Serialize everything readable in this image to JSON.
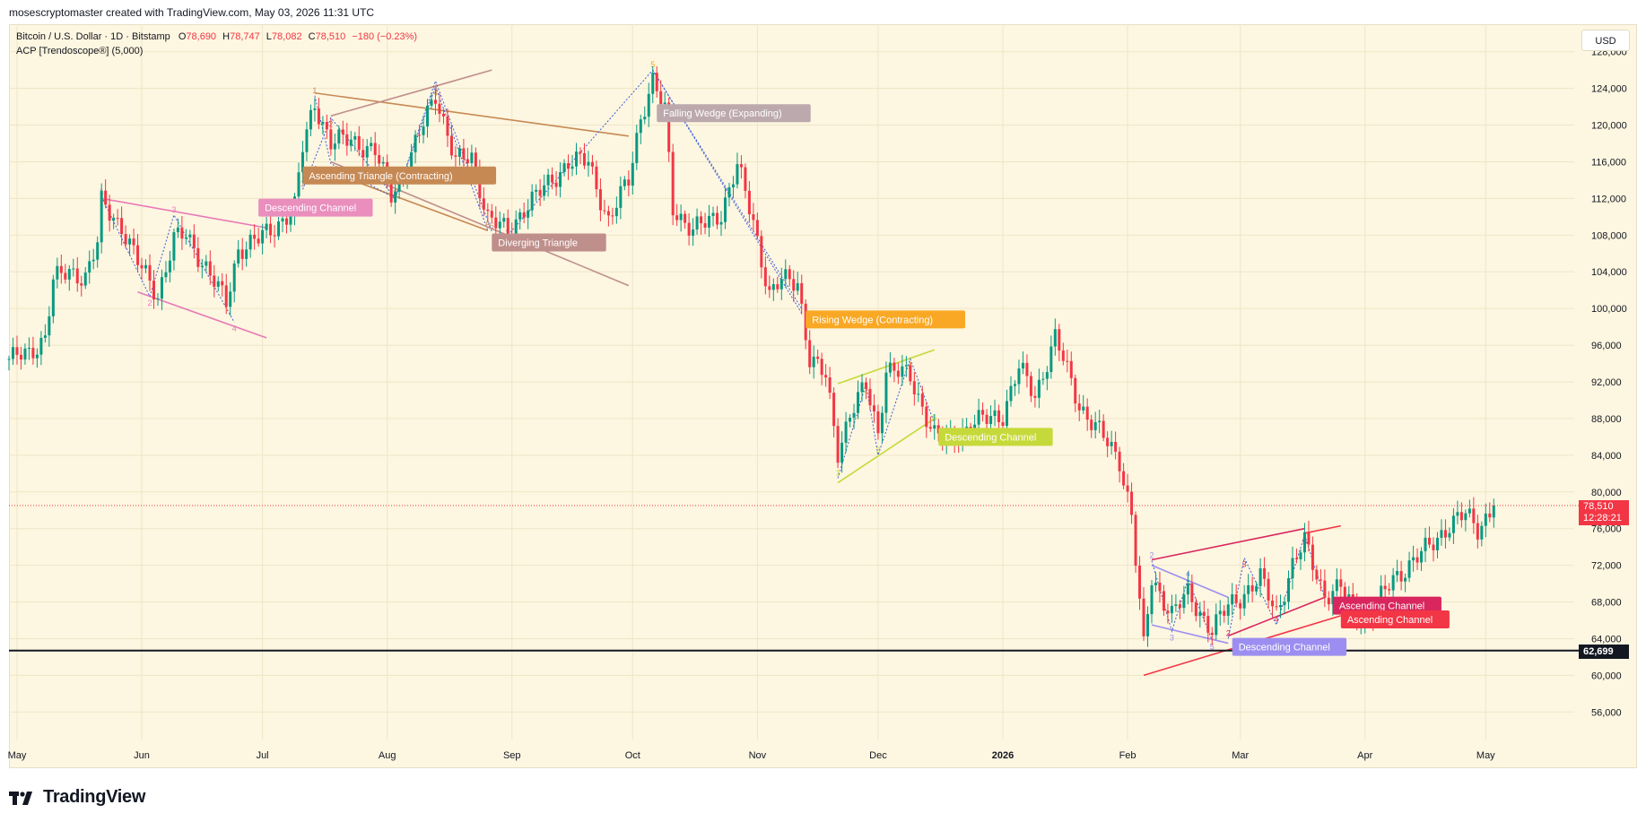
{
  "header": {
    "credit": "mosescryptomaster created with TradingView.com, May 03, 2026 11:31 UTC"
  },
  "legend": {
    "symbol": "Bitcoin / U.S. Dollar · 1D · Bitstamp",
    "o_label": "O",
    "o_value": "78,690",
    "h_label": "H",
    "h_value": "78,747",
    "l_label": "L",
    "l_value": "78,082",
    "c_label": "C",
    "c_value": "78,510",
    "change": "−180 (−0.23%)",
    "indicator": "ACP [Trendoscope®] (5,000)"
  },
  "currency": "USD",
  "brand": "TradingView",
  "current_price": {
    "price": "78,510",
    "countdown": "12:28:21",
    "value": 78510
  },
  "support_line": {
    "label": "62,699",
    "value": 62699
  },
  "colors": {
    "up": "#089981",
    "down": "#f23645",
    "background": "#fdf6e0",
    "support": "#131722"
  },
  "chart_data": {
    "type": "candlestick",
    "symbol": "Bitcoin / U.S. Dollar",
    "timeframe": "1D",
    "exchange": "Bitstamp",
    "ylim": [
      53000,
      131000
    ],
    "y_ticks": [
      "128,000",
      "124,000",
      "120,000",
      "116,000",
      "112,000",
      "108,000",
      "104,000",
      "100,000",
      "96,000",
      "92,000",
      "88,000",
      "84,000",
      "80,000",
      "76,000",
      "72,000",
      "68,000",
      "64,000",
      "60,000",
      "56,000"
    ],
    "y_tick_values": [
      128000,
      124000,
      120000,
      116000,
      112000,
      108000,
      104000,
      100000,
      96000,
      92000,
      88000,
      84000,
      80000,
      76000,
      72000,
      68000,
      64000,
      60000,
      56000
    ],
    "x_ticks": [
      "May",
      "Jun",
      "Jul",
      "Aug",
      "Sep",
      "Oct",
      "Nov",
      "Dec",
      "2026",
      "Feb",
      "Mar",
      "Apr",
      "May"
    ],
    "x_tick_dates": [
      "2025-05-01",
      "2025-06-01",
      "2025-07-01",
      "2025-08-01",
      "2025-09-01",
      "2025-10-01",
      "2025-11-01",
      "2025-12-01",
      "2026-01-01",
      "2026-02-01",
      "2026-03-01",
      "2026-04-01",
      "2026-05-01"
    ],
    "x_range": [
      "2025-04-29",
      "2026-05-23"
    ],
    "close_path": [
      [
        "2025-04-29",
        94500
      ],
      [
        "2025-05-04",
        95000
      ],
      [
        "2025-05-08",
        97000
      ],
      [
        "2025-05-10",
        103000
      ],
      [
        "2025-05-14",
        104000
      ],
      [
        "2025-05-18",
        103500
      ],
      [
        "2025-05-21",
        107000
      ],
      [
        "2025-05-22",
        111500
      ],
      [
        "2025-05-27",
        109000
      ],
      [
        "2025-05-31",
        105000
      ],
      [
        "2025-06-05",
        101500
      ],
      [
        "2025-06-09",
        107500
      ],
      [
        "2025-06-12",
        108000
      ],
      [
        "2025-06-17",
        104500
      ],
      [
        "2025-06-22",
        100500
      ],
      [
        "2025-06-25",
        106500
      ],
      [
        "2025-06-30",
        107500
      ],
      [
        "2025-07-03",
        108500
      ],
      [
        "2025-07-09",
        111000
      ],
      [
        "2025-07-11",
        117500
      ],
      [
        "2025-07-14",
        122500
      ],
      [
        "2025-07-18",
        118000
      ],
      [
        "2025-07-23",
        118500
      ],
      [
        "2025-07-29",
        117000
      ],
      [
        "2025-08-02",
        112500
      ],
      [
        "2025-08-06",
        115500
      ],
      [
        "2025-08-13",
        123500
      ],
      [
        "2025-08-18",
        116000
      ],
      [
        "2025-08-22",
        116500
      ],
      [
        "2025-08-26",
        110000
      ],
      [
        "2025-08-31",
        108200
      ],
      [
        "2025-09-04",
        111000
      ],
      [
        "2025-09-10",
        113500
      ],
      [
        "2025-09-15",
        116000
      ],
      [
        "2025-09-20",
        116000
      ],
      [
        "2025-09-25",
        109500
      ],
      [
        "2025-09-30",
        114000
      ],
      [
        "2025-10-03",
        121000
      ],
      [
        "2025-10-06",
        124700
      ],
      [
        "2025-10-09",
        121500
      ],
      [
        "2025-10-11",
        111000
      ],
      [
        "2025-10-16",
        108500
      ],
      [
        "2025-10-20",
        109500
      ],
      [
        "2025-10-23",
        110500
      ],
      [
        "2025-10-27",
        115500
      ],
      [
        "2025-10-31",
        109500
      ],
      [
        "2025-11-04",
        101500
      ],
      [
        "2025-11-07",
        103000
      ],
      [
        "2025-11-11",
        103000
      ],
      [
        "2025-11-14",
        94500
      ],
      [
        "2025-11-18",
        92500
      ],
      [
        "2025-11-21",
        84500
      ],
      [
        "2025-11-24",
        88500
      ],
      [
        "2025-11-28",
        91500
      ],
      [
        "2025-12-01",
        86500
      ],
      [
        "2025-12-03",
        93500
      ],
      [
        "2025-12-09",
        92500
      ],
      [
        "2025-12-15",
        86200
      ],
      [
        "2025-12-18",
        85500
      ],
      [
        "2025-12-25",
        87500
      ],
      [
        "2026-01-01",
        88500
      ],
      [
        "2026-01-05",
        93500
      ],
      [
        "2026-01-09",
        90500
      ],
      [
        "2026-01-14",
        96800
      ],
      [
        "2026-01-20",
        89500
      ],
      [
        "2026-01-25",
        86500
      ],
      [
        "2026-01-30",
        83500
      ],
      [
        "2026-02-02",
        77500
      ],
      [
        "2026-02-05",
        62900
      ],
      [
        "2026-02-07",
        70500
      ],
      [
        "2026-02-12",
        66800
      ],
      [
        "2026-02-16",
        68800
      ],
      [
        "2026-02-22",
        65000
      ],
      [
        "2026-02-26",
        67500
      ],
      [
        "2026-03-02",
        69000
      ],
      [
        "2026-03-06",
        70500
      ],
      [
        "2026-03-10",
        66800
      ],
      [
        "2026-03-14",
        72000
      ],
      [
        "2026-03-17",
        74500
      ],
      [
        "2026-03-22",
        68800
      ],
      [
        "2026-03-26",
        69500
      ],
      [
        "2026-03-30",
        66500
      ],
      [
        "2026-04-03",
        67000
      ],
      [
        "2026-04-08",
        70500
      ],
      [
        "2026-04-13",
        72500
      ],
      [
        "2026-04-17",
        74000
      ],
      [
        "2026-04-22",
        76500
      ],
      [
        "2026-04-26",
        77500
      ],
      [
        "2026-04-29",
        76000
      ],
      [
        "2026-05-03",
        78510
      ]
    ],
    "patterns": [
      {
        "name": "Descending Channel",
        "color": "#e879b8",
        "lines": [
          [
            [
              "2025-05-22",
              112000
            ],
            [
              "2025-07-02",
              108800
            ]
          ],
          [
            [
              "2025-05-31",
              101800
            ],
            [
              "2025-07-02",
              96800
            ]
          ]
        ],
        "zigzag": [
          [
            "2025-05-22",
            112200
          ],
          [
            "2025-06-03",
            101300
          ],
          [
            "2025-06-09",
            110200
          ],
          [
            "2025-06-24",
            98500
          ]
        ],
        "points": [
          "1",
          "2",
          "3",
          "4"
        ]
      },
      {
        "name": "Ascending Triangle (Contracting)",
        "color": "#c68954",
        "lines": [
          [
            [
              "2025-07-14",
              123500
            ],
            [
              "2025-09-30",
              118800
            ]
          ],
          [
            [
              "2025-07-14",
              115500
            ],
            [
              "2025-08-26",
              108500
            ]
          ]
        ],
        "zigzag": [
          [
            "2025-07-14",
            123200
          ],
          [
            "2025-07-18",
            115800
          ],
          [
            "2025-08-03",
            112000
          ],
          [
            "2025-08-13",
            124200
          ],
          [
            "2025-08-26",
            108500
          ]
        ],
        "points": [
          "1",
          "2",
          "3",
          "4",
          "5"
        ]
      },
      {
        "name": "Diverging Triangle",
        "color": "#bf8f8b",
        "lines": [
          [
            [
              "2025-07-18",
              121000
            ],
            [
              "2025-08-27",
              126000
            ]
          ],
          [
            [
              "2025-07-18",
              116000
            ],
            [
              "2025-09-30",
              102500
            ]
          ]
        ],
        "zigzag": [
          [
            "2025-07-11",
            113000
          ],
          [
            "2025-07-18",
            120800
          ],
          [
            "2025-08-03",
            112000
          ],
          [
            "2025-08-13",
            124800
          ],
          [
            "2025-08-27",
            108400
          ]
        ],
        "points": [
          "1",
          "2",
          "3",
          "4",
          "5"
        ]
      },
      {
        "name": "Falling Wedge (Expanding)",
        "color": "#bca9ad",
        "lines": [],
        "zigzag": [
          [
            "2025-08-31",
            108000
          ],
          [
            "2025-10-06",
            126000
          ],
          [
            "2025-11-12",
            100000
          ]
        ],
        "points": [
          "4"
        ]
      },
      {
        "name": "Rising Wedge (Contracting)",
        "color": "#f9a825",
        "lines": [],
        "zigzag": [
          [
            "2025-10-06",
            126000
          ],
          [
            "2025-11-12",
            99500
          ]
        ],
        "points": [
          "5"
        ]
      },
      {
        "name": "Descending Channel",
        "color": "#c6d93a",
        "lines": [
          [
            [
              "2025-11-21",
              91800
            ],
            [
              "2025-12-15",
              95500
            ]
          ],
          [
            [
              "2025-11-21",
              81000
            ],
            [
              "2025-12-15",
              88000
            ]
          ]
        ],
        "zigzag": [
          [
            "2025-11-21",
            81500
          ],
          [
            "2025-11-28",
            91800
          ],
          [
            "2025-12-01",
            84000
          ],
          [
            "2025-12-09",
            94500
          ],
          [
            "2025-12-15",
            87500
          ]
        ],
        "points": [
          "1",
          "2",
          "3",
          "4",
          "5"
        ]
      },
      {
        "name": "Descending Channel",
        "color": "#9c8ef0",
        "lines": [
          [
            [
              "2026-02-07",
              72000
            ],
            [
              "2026-02-26",
              68500
            ]
          ],
          [
            [
              "2026-02-07",
              65500
            ],
            [
              "2026-02-26",
              63500
            ]
          ]
        ],
        "zigzag": [
          [
            "2026-02-07",
            72500
          ],
          [
            "2026-02-12",
            64800
          ],
          [
            "2026-02-16",
            70500
          ],
          [
            "2026-02-22",
            63800
          ]
        ],
        "points": [
          "2",
          "3",
          "4",
          "5"
        ]
      },
      {
        "name": "Ascending Channel",
        "color": "#d9265e",
        "lines": [
          [
            [
              "2026-02-07",
              72600
            ],
            [
              "2026-03-17",
              76000
            ]
          ],
          [
            [
              "2026-02-26",
              64300
            ],
            [
              "2026-03-22",
              68500
            ]
          ]
        ],
        "zigzag": [
          [
            "2026-02-26",
            64000
          ],
          [
            "2026-03-02",
            72800
          ],
          [
            "2026-03-10",
            65500
          ],
          [
            "2026-03-17",
            75300
          ],
          [
            "2026-03-22",
            68400
          ]
        ],
        "points": [
          "2",
          "3",
          "4",
          "5"
        ]
      },
      {
        "name": "Ascending Channel",
        "color": "#f23645",
        "lines": [
          [
            [
              "2026-03-17",
              75500
            ],
            [
              "2026-03-26",
              76300
            ]
          ],
          [
            [
              "2026-02-05",
              60000
            ],
            [
              "2026-03-26",
              66500
            ]
          ]
        ],
        "zigzag": [],
        "points": [
          "1"
        ]
      }
    ],
    "pattern_labels": [
      {
        "text": "Descending Channel",
        "date": "2025-06-30",
        "price": 111000,
        "bg": "#e98ebd"
      },
      {
        "text": "Ascending Triangle (Contracting)",
        "date": "2025-07-11",
        "price": 114500,
        "bg": "#c68954"
      },
      {
        "text": "Diverging Triangle",
        "date": "2025-08-27",
        "price": 107200,
        "bg": "#bf8f8b"
      },
      {
        "text": "Falling Wedge (Expanding)",
        "date": "2025-10-07",
        "price": 121300,
        "bg": "#bca9ad"
      },
      {
        "text": "Rising Wedge (Contracting)",
        "date": "2025-11-13",
        "price": 98800,
        "bg": "#f9a825"
      },
      {
        "text": "Descending Channel",
        "date": "2025-12-16",
        "price": 86000,
        "bg": "#c6d93a"
      },
      {
        "text": "Descending Channel",
        "date": "2026-02-27",
        "price": 63100,
        "bg": "#9c8ef0"
      },
      {
        "text": "Ascending Channel",
        "date": "2026-03-24",
        "price": 67600,
        "bg": "#d9265e"
      },
      {
        "text": "Ascending Channel",
        "date": "2026-03-26",
        "price": 66100,
        "bg": "#f23645"
      }
    ]
  }
}
